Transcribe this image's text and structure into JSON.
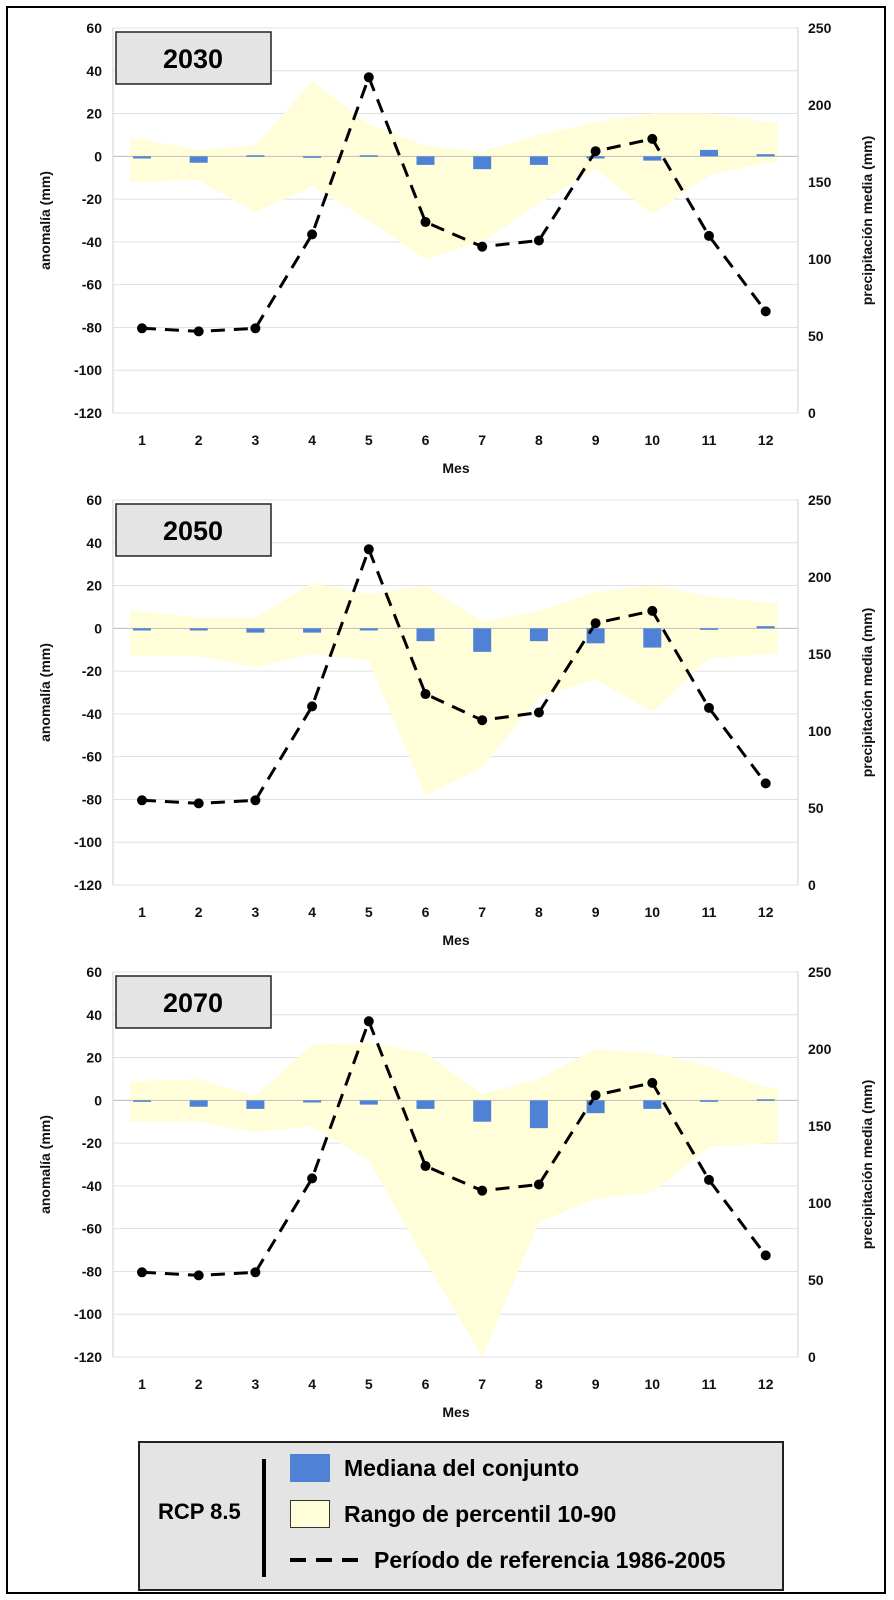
{
  "chart_data": [
    {
      "type": "bar",
      "title": "2030",
      "categories": [
        "1",
        "2",
        "3",
        "4",
        "5",
        "6",
        "7",
        "8",
        "9",
        "10",
        "11",
        "12"
      ],
      "xlabel": "Mes",
      "ylabel": "anomalía (mm)",
      "ylabel_right": "precipitación media (mm)",
      "ylim": [
        -120,
        60
      ],
      "ylim_right": [
        0,
        250
      ],
      "yticks": [
        "60",
        "40",
        "20",
        "0",
        "-20",
        "-40",
        "-60",
        "-80",
        "-100",
        "-120"
      ],
      "yticks_right": [
        "250",
        "200",
        "150",
        "100",
        "50",
        "0"
      ],
      "series": [
        {
          "name": "Mediana del conjunto",
          "kind": "bar",
          "axis": "left",
          "values": [
            -1,
            -3,
            0.5,
            0,
            0.5,
            -4,
            -6,
            -4,
            -1,
            -2,
            3,
            1
          ]
        },
        {
          "name": "Rango de percentil 10-90",
          "kind": "band",
          "axis": "left",
          "lower": [
            -12,
            -11,
            -26,
            -14,
            -30,
            -48,
            -40,
            -22,
            -6,
            -27,
            -9,
            -3
          ],
          "upper": [
            8,
            3,
            5,
            35,
            15,
            5,
            2,
            10,
            16,
            20,
            20,
            16
          ]
        },
        {
          "name": "Período de referencia 1986-2005",
          "kind": "line",
          "axis": "right",
          "values": [
            55,
            53,
            55,
            116,
            218,
            124,
            108,
            112,
            170,
            178,
            115,
            66
          ]
        }
      ]
    },
    {
      "type": "bar",
      "title": "2050",
      "categories": [
        "1",
        "2",
        "3",
        "4",
        "5",
        "6",
        "7",
        "8",
        "9",
        "10",
        "11",
        "12"
      ],
      "xlabel": "Mes",
      "ylabel": "anomalía (mm)",
      "ylabel_right": "precipitación media (mm)",
      "ylim": [
        -120,
        60
      ],
      "ylim_right": [
        0,
        250
      ],
      "yticks": [
        "60",
        "40",
        "20",
        "0",
        "-20",
        "-40",
        "-60",
        "-80",
        "-100",
        "-120"
      ],
      "yticks_right": [
        "250",
        "200",
        "150",
        "100",
        "50",
        "0"
      ],
      "series": [
        {
          "name": "Mediana del conjunto",
          "kind": "bar",
          "axis": "left",
          "values": [
            -1,
            -1,
            -2,
            -2,
            -1,
            -6,
            -11,
            -6,
            -7,
            -9,
            0,
            1
          ]
        },
        {
          "name": "Rango de percentil 10-90",
          "kind": "band",
          "axis": "left",
          "lower": [
            -13,
            -13,
            -18,
            -12,
            -15,
            -78,
            -65,
            -32,
            -24,
            -39,
            -14,
            -12
          ],
          "upper": [
            8,
            5,
            5,
            21,
            16,
            20,
            3,
            8,
            17,
            20,
            15,
            12
          ]
        },
        {
          "name": "Período de referencia 1986-2005",
          "kind": "line",
          "axis": "right",
          "values": [
            55,
            53,
            55,
            116,
            218,
            124,
            107,
            112,
            170,
            178,
            115,
            66
          ]
        }
      ]
    },
    {
      "type": "bar",
      "title": "2070",
      "categories": [
        "1",
        "2",
        "3",
        "4",
        "5",
        "6",
        "7",
        "8",
        "9",
        "10",
        "11",
        "12"
      ],
      "xlabel": "Mes",
      "ylabel": "anomalía (mm)",
      "ylabel_right": "precipitación media (mm)",
      "ylim": [
        -120,
        60
      ],
      "ylim_right": [
        0,
        250
      ],
      "yticks": [
        "60",
        "40",
        "20",
        "0",
        "-20",
        "-40",
        "-60",
        "-80",
        "-100",
        "-120"
      ],
      "yticks_right": [
        "250",
        "200",
        "150",
        "100",
        "50",
        "0"
      ],
      "series": [
        {
          "name": "Mediana del conjunto",
          "kind": "bar",
          "axis": "left",
          "values": [
            -0.5,
            -3,
            -4,
            -1,
            -2,
            -4,
            -10,
            -13,
            -6,
            -4,
            0,
            0.5
          ]
        },
        {
          "name": "Rango de percentil 10-90",
          "kind": "band",
          "axis": "left",
          "lower": [
            -10,
            -10,
            -15,
            -12,
            -28,
            -75,
            -120,
            -57,
            -46,
            -43,
            -22,
            -20
          ],
          "upper": [
            9,
            10,
            2,
            26,
            27,
            22,
            3,
            10,
            24,
            22,
            16,
            6
          ]
        },
        {
          "name": "Período de referencia 1986-2005",
          "kind": "line",
          "axis": "right",
          "values": [
            55,
            53,
            55,
            116,
            218,
            124,
            108,
            112,
            170,
            178,
            115,
            66
          ]
        }
      ]
    }
  ],
  "legend": {
    "scenario": "RCP 8.5",
    "items": [
      {
        "label": "Mediana del conjunto",
        "color": "#4f81d4"
      },
      {
        "label": "Rango de percentil 10-90",
        "color": "#fffed8"
      },
      {
        "label": "Período de referencia 1986-2005",
        "color": "#000000"
      }
    ]
  },
  "colors": {
    "bar": "#4f81d4",
    "band": "#fffed8",
    "line": "#000000",
    "title_box": "#e4e4e4"
  }
}
